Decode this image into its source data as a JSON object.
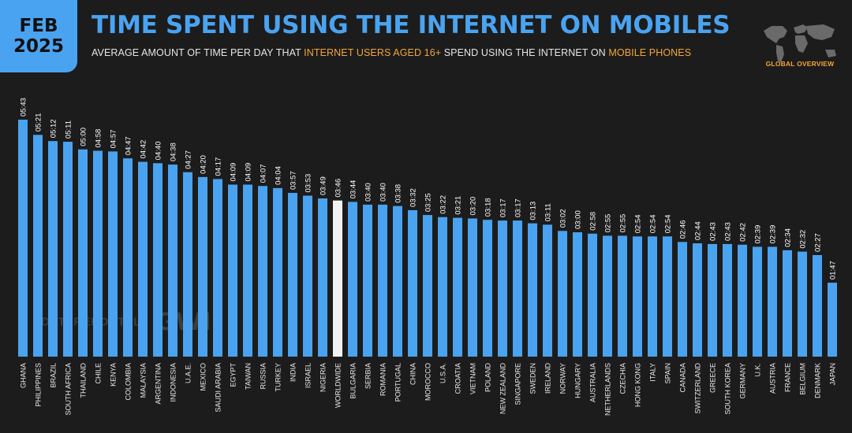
{
  "header": {
    "month": "FEB",
    "year": "2025",
    "title": "TIME SPENT USING THE INTERNET ON MOBILES",
    "subtitle_part1": "AVERAGE AMOUNT OF TIME PER DAY THAT ",
    "subtitle_hl1": "INTERNET USERS AGED 16+",
    "subtitle_part2": " SPEND USING THE INTERNET ON ",
    "subtitle_hl2": "MOBILE PHONES"
  },
  "badge": {
    "label": "GLOBAL OVERVIEW"
  },
  "watermark": {
    "left": "DATAREPORTAL",
    "right": "GWI."
  },
  "colors": {
    "bar": "#4aa3f0",
    "highlight_bar": "#f2f2f2",
    "accent": "#f3a63a",
    "background": "#1c1c1c"
  },
  "chart_data": {
    "type": "bar",
    "title": "TIME SPENT USING THE INTERNET ON MOBILES",
    "unit": "hours:minutes per day",
    "highlight": "WORLDWIDE",
    "ylim": [
      0,
      343
    ],
    "categories": [
      "GHANA",
      "PHILIPPINES",
      "BRAZIL",
      "SOUTH AFRICA",
      "THAILAND",
      "CHILE",
      "KENYA",
      "COLOMBIA",
      "MALAYSIA",
      "ARGENTINA",
      "INDONESIA",
      "U.A.E.",
      "MEXICO",
      "SAUDI ARABIA",
      "EGYPT",
      "TAIWAN",
      "RUSSIA",
      "TURKEY",
      "INDIA",
      "ISRAEL",
      "NIGERIA",
      "WORLDWIDE",
      "BULGARIA",
      "SERBIA",
      "ROMANIA",
      "PORTUGAL",
      "CHINA",
      "MOROCCO",
      "U.S.A.",
      "CROATIA",
      "VIETNAM",
      "POLAND",
      "NEW ZEALAND",
      "SINGAPORE",
      "SWEDEN",
      "IRELAND",
      "NORWAY",
      "HUNGARY",
      "AUSTRALIA",
      "NETHERLANDS",
      "CZECHIA",
      "HONG KONG",
      "ITALY",
      "SPAIN",
      "CANADA",
      "SWITZERLAND",
      "GREECE",
      "SOUTH KOREA",
      "GERMANY",
      "U.K.",
      "AUSTRIA",
      "FRANCE",
      "BELGIUM",
      "DENMARK",
      "JAPAN"
    ],
    "labels": [
      "05:43",
      "05:21",
      "05:12",
      "05:11",
      "05:00",
      "04:58",
      "04:57",
      "04:47",
      "04:42",
      "04:40",
      "04:38",
      "04:27",
      "04:20",
      "04:17",
      "04:09",
      "04:09",
      "04:07",
      "04:04",
      "03:57",
      "03:53",
      "03:49",
      "03:46",
      "03:44",
      "03:40",
      "03:40",
      "03:38",
      "03:32",
      "03:25",
      "03:22",
      "03:21",
      "03:20",
      "03:18",
      "03:17",
      "03:17",
      "03:13",
      "03:11",
      "03:02",
      "03:00",
      "02:58",
      "02:55",
      "02:55",
      "02:54",
      "02:54",
      "02:54",
      "02:46",
      "02:44",
      "02:43",
      "02:43",
      "02:42",
      "02:39",
      "02:39",
      "02:34",
      "02:32",
      "02:27",
      "01:47"
    ],
    "values": [
      343,
      321,
      312,
      311,
      300,
      298,
      297,
      287,
      282,
      280,
      278,
      267,
      260,
      257,
      249,
      249,
      247,
      244,
      237,
      233,
      229,
      226,
      224,
      220,
      220,
      218,
      212,
      205,
      202,
      201,
      200,
      198,
      197,
      197,
      193,
      191,
      182,
      180,
      178,
      175,
      175,
      174,
      174,
      174,
      166,
      164,
      163,
      163,
      162,
      159,
      159,
      154,
      152,
      147,
      107
    ]
  }
}
